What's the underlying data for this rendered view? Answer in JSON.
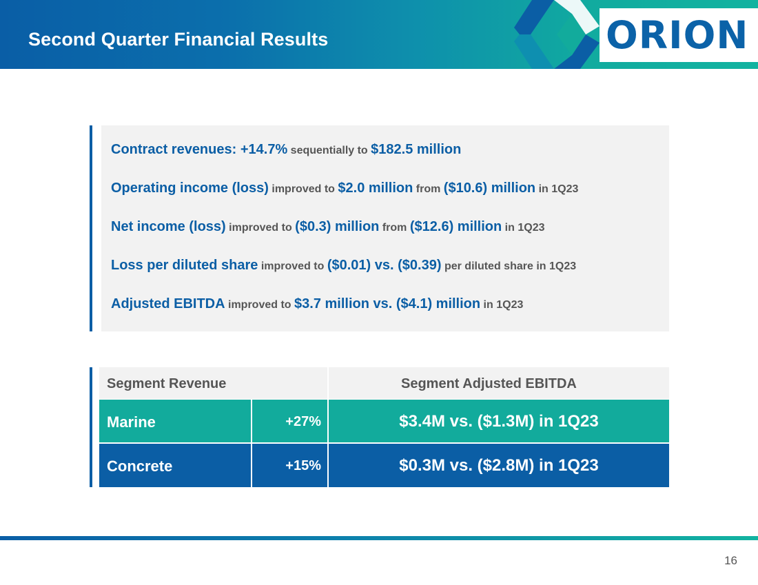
{
  "header": {
    "title": "Second Quarter Financial Results",
    "logo_text": "ORION",
    "brand_colors": {
      "navy": "#0b5ea5",
      "teal": "#12ab9c"
    }
  },
  "summary": [
    {
      "parts": [
        {
          "t": "Contract revenues: +14.7%",
          "s": "hl"
        },
        {
          "t": " sequentially to ",
          "s": "lo"
        },
        {
          "t": "$182.5 million",
          "s": "hl"
        }
      ]
    },
    {
      "parts": [
        {
          "t": "Operating income (loss)",
          "s": "hl"
        },
        {
          "t": " improved to ",
          "s": "lo"
        },
        {
          "t": "$2.0 million",
          "s": "hl"
        },
        {
          "t": " from ",
          "s": "lo"
        },
        {
          "t": "($10.6) million",
          "s": "hl"
        },
        {
          "t": " in 1Q23",
          "s": "lo"
        }
      ]
    },
    {
      "parts": [
        {
          "t": "Net income (loss)",
          "s": "hl"
        },
        {
          "t": " improved to ",
          "s": "lo"
        },
        {
          "t": "($0.3) million",
          "s": "hl"
        },
        {
          "t": " from ",
          "s": "lo"
        },
        {
          "t": "($12.6) million",
          "s": "hl"
        },
        {
          "t": " in 1Q23",
          "s": "lo"
        }
      ]
    },
    {
      "parts": [
        {
          "t": "Loss per diluted share",
          "s": "hl"
        },
        {
          "t": " improved to ",
          "s": "lo"
        },
        {
          "t": "($0.01) vs. ($0.39)",
          "s": "hl"
        },
        {
          "t": " per diluted share in 1Q23",
          "s": "lo"
        }
      ]
    },
    {
      "parts": [
        {
          "t": "Adjusted EBITDA",
          "s": "hl"
        },
        {
          "t": " improved to ",
          "s": "lo"
        },
        {
          "t": "$3.7 million vs. ($4.1) million",
          "s": "hl"
        },
        {
          "t": " in 1Q23",
          "s": "lo"
        }
      ]
    }
  ],
  "segments": {
    "revenue_header": "Segment Revenue",
    "ebitda_header": "Segment Adjusted EBITDA",
    "rows": [
      {
        "name": "Marine",
        "growth": "+27%",
        "ebitda": "$3.4M vs. ($1.3M) in 1Q23",
        "color": "#12ab9c"
      },
      {
        "name": "Concrete",
        "growth": "+15%",
        "ebitda": "$0.3M vs. ($2.8M) in 1Q23",
        "color": "#0b5ea5"
      }
    ]
  },
  "footer": {
    "page_number": "16"
  }
}
